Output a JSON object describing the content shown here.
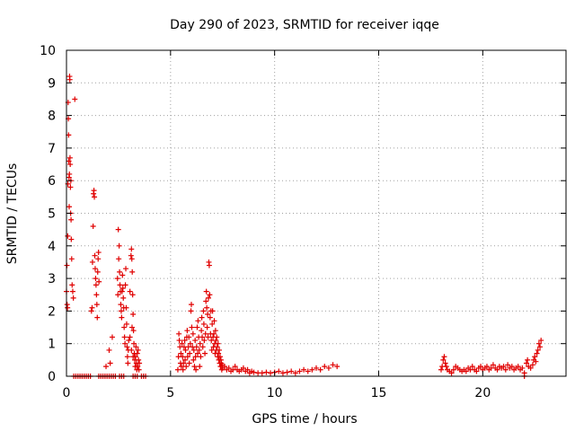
{
  "chart_data": {
    "type": "scatter",
    "title": "Day 290 of 2023, SRMTID for receiver iqqe",
    "xlabel": "GPS time / hours",
    "ylabel": "SRMTID / TECUs",
    "xlim": [
      0,
      24
    ],
    "ylim": [
      0,
      10
    ],
    "xticks": [
      0,
      5,
      10,
      15,
      20
    ],
    "xtick_labels": [
      "0",
      "5",
      "10",
      "15",
      "20"
    ],
    "yticks": [
      0,
      1,
      2,
      3,
      4,
      5,
      6,
      7,
      8,
      9,
      10
    ],
    "ytick_labels": [
      "0",
      "1",
      "2",
      "3",
      "4",
      "5",
      "6",
      "7",
      "8",
      "9",
      "10"
    ],
    "grid": true,
    "marker": "+",
    "colors": {
      "series": "#e00000",
      "grid": "#a0a0a0",
      "axes": "#000000"
    },
    "series": [
      {
        "name": "SRMTID",
        "points": [
          [
            0.0,
            2.6
          ],
          [
            0.02,
            3.4
          ],
          [
            0.03,
            2.2
          ],
          [
            0.05,
            2.1
          ],
          [
            0.06,
            4.3
          ],
          [
            0.07,
            5.9
          ],
          [
            0.08,
            8.4
          ],
          [
            0.09,
            7.9
          ],
          [
            0.1,
            7.4
          ],
          [
            0.11,
            6.6
          ],
          [
            0.12,
            6.1
          ],
          [
            0.13,
            5.2
          ],
          [
            0.14,
            6.2
          ],
          [
            0.15,
            9.2
          ],
          [
            0.16,
            9.1
          ],
          [
            0.17,
            6.7
          ],
          [
            0.18,
            6.5
          ],
          [
            0.19,
            5.8
          ],
          [
            0.2,
            5.0
          ],
          [
            0.21,
            6.0
          ],
          [
            0.22,
            4.8
          ],
          [
            0.23,
            4.2
          ],
          [
            0.25,
            3.6
          ],
          [
            0.27,
            2.8
          ],
          [
            0.3,
            2.6
          ],
          [
            0.33,
            2.4
          ],
          [
            0.4,
            8.5
          ],
          [
            0.35,
            0
          ],
          [
            0.45,
            0
          ],
          [
            0.55,
            0
          ],
          [
            0.65,
            0
          ],
          [
            0.75,
            0
          ],
          [
            0.85,
            0
          ],
          [
            0.95,
            0
          ],
          [
            1.05,
            0
          ],
          [
            1.15,
            0
          ],
          [
            1.2,
            2.0
          ],
          [
            1.23,
            2.1
          ],
          [
            1.25,
            3.5
          ],
          [
            1.28,
            4.6
          ],
          [
            1.3,
            5.6
          ],
          [
            1.32,
            5.7
          ],
          [
            1.34,
            5.5
          ],
          [
            1.36,
            3.7
          ],
          [
            1.38,
            3.3
          ],
          [
            1.4,
            3.0
          ],
          [
            1.42,
            2.8
          ],
          [
            1.44,
            2.5
          ],
          [
            1.46,
            2.2
          ],
          [
            1.48,
            1.8
          ],
          [
            1.5,
            3.2
          ],
          [
            1.52,
            3.6
          ],
          [
            1.54,
            3.8
          ],
          [
            1.56,
            2.9
          ],
          [
            1.55,
            0
          ],
          [
            1.65,
            0
          ],
          [
            1.75,
            0
          ],
          [
            1.85,
            0
          ],
          [
            1.95,
            0
          ],
          [
            2.05,
            0
          ],
          [
            2.15,
            0
          ],
          [
            2.25,
            0
          ],
          [
            2.35,
            0
          ],
          [
            1.9,
            0.3
          ],
          [
            2.05,
            0.8
          ],
          [
            2.2,
            1.2
          ],
          [
            2.1,
            0.4
          ],
          [
            2.45,
            3.0
          ],
          [
            2.47,
            2.5
          ],
          [
            2.49,
            4.5
          ],
          [
            2.51,
            3.6
          ],
          [
            2.53,
            4.0
          ],
          [
            2.55,
            3.2
          ],
          [
            2.57,
            2.8
          ],
          [
            2.59,
            2.6
          ],
          [
            2.61,
            2.2
          ],
          [
            2.63,
            2.0
          ],
          [
            2.65,
            1.8
          ],
          [
            2.67,
            2.6
          ],
          [
            2.69,
            3.1
          ],
          [
            2.71,
            2.7
          ],
          [
            2.73,
            2.4
          ],
          [
            2.75,
            2.1
          ],
          [
            2.77,
            1.5
          ],
          [
            2.79,
            1.2
          ],
          [
            2.81,
            1.0
          ],
          [
            2.83,
            2.8
          ],
          [
            2.85,
            3.3
          ],
          [
            2.87,
            2.1
          ],
          [
            2.89,
            1.6
          ],
          [
            2.91,
            0.9
          ],
          [
            2.93,
            0.6
          ],
          [
            2.95,
            0.4
          ],
          [
            2.97,
            0.8
          ],
          [
            2.99,
            1.1
          ],
          [
            2.55,
            0
          ],
          [
            2.65,
            0
          ],
          [
            2.75,
            0
          ],
          [
            3.05,
            2.6
          ],
          [
            3.1,
            3.7
          ],
          [
            3.12,
            3.9
          ],
          [
            3.14,
            3.6
          ],
          [
            3.16,
            3.2
          ],
          [
            3.18,
            2.5
          ],
          [
            3.2,
            1.9
          ],
          [
            3.22,
            1.4
          ],
          [
            3.24,
            1.0
          ],
          [
            3.26,
            0.7
          ],
          [
            3.28,
            0.5
          ],
          [
            3.3,
            0.3
          ],
          [
            3.32,
            0.6
          ],
          [
            3.34,
            0.9
          ],
          [
            3.36,
            0.4
          ],
          [
            3.38,
            0.2
          ],
          [
            3.4,
            0.7
          ],
          [
            3.42,
            0.3
          ],
          [
            3.44,
            0.8
          ],
          [
            3.46,
            0.5
          ],
          [
            3.48,
            0.2
          ],
          [
            3.5,
            0.4
          ],
          [
            3.05,
            1.2
          ],
          [
            3.12,
            0.8
          ],
          [
            3.2,
            0.6
          ],
          [
            3.15,
            1.5
          ],
          [
            3.2,
            0
          ],
          [
            3.3,
            0
          ],
          [
            3.4,
            0
          ],
          [
            3.6,
            0
          ],
          [
            3.7,
            0
          ],
          [
            3.8,
            0
          ],
          [
            5.35,
            0.2
          ],
          [
            5.38,
            0.6
          ],
          [
            5.4,
            1.3
          ],
          [
            5.42,
            1.1
          ],
          [
            5.45,
            0.9
          ],
          [
            5.48,
            0.4
          ],
          [
            5.5,
            0.7
          ],
          [
            5.52,
            0.3
          ],
          [
            5.55,
            1.0
          ],
          [
            5.58,
            0.6
          ],
          [
            5.6,
            0.2
          ],
          [
            5.62,
            0.4
          ],
          [
            5.65,
            0.9
          ],
          [
            5.68,
            1.1
          ],
          [
            5.7,
            0.5
          ],
          [
            5.72,
            0.8
          ],
          [
            5.75,
            0.3
          ],
          [
            5.78,
            1.2
          ],
          [
            5.8,
            1.4
          ],
          [
            5.82,
            0.6
          ],
          [
            5.85,
            0.9
          ],
          [
            5.88,
            1.2
          ],
          [
            5.9,
            0.4
          ],
          [
            5.92,
            0.7
          ],
          [
            5.95,
            1.0
          ],
          [
            5.98,
            2.0
          ],
          [
            6.0,
            2.2
          ],
          [
            6.02,
            1.5
          ],
          [
            6.05,
            0.9
          ],
          [
            6.08,
            1.3
          ],
          [
            6.1,
            0.5
          ],
          [
            6.12,
            0.8
          ],
          [
            6.15,
            0.3
          ],
          [
            6.18,
            1.1
          ],
          [
            6.2,
            0.6
          ],
          [
            6.22,
            0.2
          ],
          [
            6.25,
            0.9
          ],
          [
            6.28,
            1.5
          ],
          [
            6.3,
            0.7
          ],
          [
            6.32,
            1.7
          ],
          [
            6.35,
            1.2
          ],
          [
            6.38,
            0.8
          ],
          [
            6.4,
            0.3
          ],
          [
            6.42,
            1.0
          ],
          [
            6.45,
            0.6
          ],
          [
            6.48,
            1.4
          ],
          [
            6.5,
            1.8
          ],
          [
            6.52,
            1.2
          ],
          [
            6.55,
            0.9
          ],
          [
            6.58,
            2.0
          ],
          [
            6.6,
            1.6
          ],
          [
            6.62,
            1.1
          ],
          [
            6.65,
            0.7
          ],
          [
            6.68,
            1.3
          ],
          [
            6.7,
            2.3
          ],
          [
            6.72,
            2.6
          ],
          [
            6.74,
            2.1
          ],
          [
            6.76,
            1.5
          ],
          [
            6.78,
            1.9
          ],
          [
            6.8,
            1.2
          ],
          [
            6.82,
            2.4
          ],
          [
            6.84,
            3.5
          ],
          [
            6.86,
            3.4
          ],
          [
            6.88,
            2.5
          ],
          [
            6.9,
            1.8
          ],
          [
            6.92,
            1.3
          ],
          [
            6.94,
            2.0
          ],
          [
            6.96,
            1.1
          ],
          [
            6.98,
            0.8
          ],
          [
            7.0,
            1.6
          ],
          [
            7.02,
            2.0
          ],
          [
            7.04,
            1.2
          ],
          [
            7.06,
            0.9
          ],
          [
            7.08,
            1.3
          ],
          [
            7.1,
            1.7
          ],
          [
            7.12,
            1.0
          ],
          [
            7.14,
            0.7
          ],
          [
            7.16,
            1.4
          ],
          [
            7.18,
            1.1
          ],
          [
            7.2,
            0.8
          ],
          [
            7.22,
            1.2
          ],
          [
            7.24,
            0.9
          ],
          [
            7.26,
            0.6
          ],
          [
            7.28,
            1.0
          ],
          [
            7.3,
            0.7
          ],
          [
            7.32,
            0.5
          ],
          [
            7.34,
            0.8
          ],
          [
            7.36,
            0.4
          ],
          [
            7.38,
            0.6
          ],
          [
            7.4,
            0.3
          ],
          [
            7.42,
            0.5
          ],
          [
            7.44,
            0.4
          ],
          [
            7.46,
            0.2
          ],
          [
            7.48,
            0.35
          ],
          [
            7.5,
            0.25
          ],
          [
            7.6,
            0.3
          ],
          [
            7.7,
            0.2
          ],
          [
            7.8,
            0.25
          ],
          [
            7.9,
            0.15
          ],
          [
            8.0,
            0.2
          ],
          [
            8.1,
            0.3
          ],
          [
            8.2,
            0.2
          ],
          [
            8.3,
            0.15
          ],
          [
            8.4,
            0.2
          ],
          [
            8.5,
            0.25
          ],
          [
            8.6,
            0.15
          ],
          [
            8.7,
            0.2
          ],
          [
            8.8,
            0.1
          ],
          [
            8.9,
            0.15
          ],
          [
            9.0,
            0.12
          ],
          [
            9.2,
            0.1
          ],
          [
            9.4,
            0.1
          ],
          [
            9.6,
            0.12
          ],
          [
            9.8,
            0.1
          ],
          [
            10.0,
            0.12
          ],
          [
            10.2,
            0.15
          ],
          [
            10.4,
            0.1
          ],
          [
            10.6,
            0.12
          ],
          [
            10.8,
            0.15
          ],
          [
            11.0,
            0.1
          ],
          [
            11.2,
            0.15
          ],
          [
            11.4,
            0.2
          ],
          [
            11.6,
            0.15
          ],
          [
            11.8,
            0.2
          ],
          [
            12.0,
            0.25
          ],
          [
            12.2,
            0.2
          ],
          [
            12.4,
            0.3
          ],
          [
            12.6,
            0.25
          ],
          [
            12.8,
            0.35
          ],
          [
            13.0,
            0.3
          ],
          [
            18.0,
            0.2
          ],
          [
            18.05,
            0.3
          ],
          [
            18.1,
            0.5
          ],
          [
            18.15,
            0.6
          ],
          [
            18.2,
            0.4
          ],
          [
            18.25,
            0.3
          ],
          [
            18.3,
            0.2
          ],
          [
            18.4,
            0.15
          ],
          [
            18.5,
            0.1
          ],
          [
            18.6,
            0.2
          ],
          [
            18.7,
            0.3
          ],
          [
            18.8,
            0.25
          ],
          [
            18.9,
            0.2
          ],
          [
            19.0,
            0.15
          ],
          [
            19.1,
            0.2
          ],
          [
            19.2,
            0.15
          ],
          [
            19.3,
            0.25
          ],
          [
            19.4,
            0.2
          ],
          [
            19.5,
            0.3
          ],
          [
            19.6,
            0.2
          ],
          [
            19.7,
            0.15
          ],
          [
            19.8,
            0.25
          ],
          [
            19.9,
            0.3
          ],
          [
            20.0,
            0.2
          ],
          [
            20.1,
            0.25
          ],
          [
            20.2,
            0.3
          ],
          [
            20.3,
            0.2
          ],
          [
            20.4,
            0.25
          ],
          [
            20.5,
            0.35
          ],
          [
            20.6,
            0.25
          ],
          [
            20.7,
            0.2
          ],
          [
            20.8,
            0.3
          ],
          [
            20.9,
            0.25
          ],
          [
            21.0,
            0.3
          ],
          [
            21.1,
            0.2
          ],
          [
            21.2,
            0.35
          ],
          [
            21.3,
            0.25
          ],
          [
            21.4,
            0.3
          ],
          [
            21.5,
            0.2
          ],
          [
            21.6,
            0.25
          ],
          [
            21.7,
            0.3
          ],
          [
            21.8,
            0.2
          ],
          [
            21.9,
            0.25
          ],
          [
            22.0,
            0.1
          ],
          [
            22.1,
            0.4
          ],
          [
            22.15,
            0.5
          ],
          [
            22.2,
            0.3
          ],
          [
            22.3,
            0.25
          ],
          [
            22.4,
            0.35
          ],
          [
            22.45,
            0.5
          ],
          [
            22.5,
            0.6
          ],
          [
            22.55,
            0.45
          ],
          [
            22.6,
            0.7
          ],
          [
            22.65,
            0.8
          ],
          [
            22.7,
            1.0
          ],
          [
            22.75,
            0.9
          ],
          [
            22.8,
            1.1
          ],
          [
            22.0,
            0
          ]
        ]
      }
    ]
  }
}
